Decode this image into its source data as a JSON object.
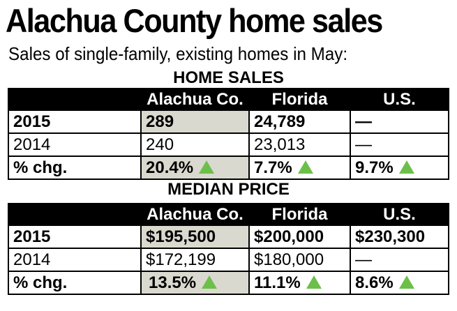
{
  "header": {
    "title": "Alachua County home sales",
    "subtitle": "Sales of single-family, existing homes in May:"
  },
  "colors": {
    "header_bg": "#000000",
    "highlight": "#d9d9cf",
    "up_arrow": "#6cc04a"
  },
  "chart_data": {
    "type": "table",
    "tables": [
      {
        "title": "HOME SALES",
        "columns": [
          "",
          "Alachua Co.",
          "Florida",
          "U.S."
        ],
        "rows": [
          {
            "label": "2015",
            "values": [
              "289",
              "24,789",
              "—"
            ]
          },
          {
            "label": "2014",
            "values": [
              "240",
              "23,013",
              "—"
            ]
          },
          {
            "label": "% chg.",
            "values": [
              "20.4%",
              "7.7%",
              "9.7%"
            ],
            "trend": [
              "up",
              "up",
              "up"
            ]
          }
        ]
      },
      {
        "title": "MEDIAN PRICE",
        "columns": [
          "",
          "Alachua Co.",
          "Florida",
          "U.S."
        ],
        "rows": [
          {
            "label": "2015",
            "values": [
              "$195,500",
              "$200,000",
              "$230,300"
            ]
          },
          {
            "label": "2014",
            "values": [
              "$172,199",
              "$180,000",
              "—"
            ]
          },
          {
            "label": "% chg.",
            "values": [
              "13.5%",
              "11.1%",
              "8.6%"
            ],
            "trend": [
              "up",
              "up",
              "up"
            ]
          }
        ]
      }
    ]
  }
}
